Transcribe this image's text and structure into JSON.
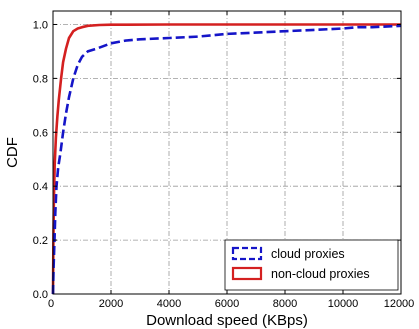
{
  "chart_data": {
    "type": "line",
    "title": "",
    "xlabel": "Download speed (KBps)",
    "ylabel": "CDF",
    "xlim": [
      0,
      12000
    ],
    "ylim": [
      0,
      1.05
    ],
    "xticks": [
      0,
      2000,
      4000,
      6000,
      8000,
      10000,
      12000
    ],
    "yticks": [
      0.0,
      0.2,
      0.4,
      0.6,
      0.8,
      1.0
    ],
    "xtick_labels": [
      "0",
      "2000",
      "4000",
      "6000",
      "8000",
      "10000",
      "12000"
    ],
    "ytick_labels": [
      "0.0",
      "0.2",
      "0.4",
      "0.6",
      "0.8",
      "1.0"
    ],
    "grid": true,
    "legend_position": "lower-right",
    "series": [
      {
        "name": "cloud proxies",
        "color": "#1515c8",
        "style": "dashed",
        "x": [
          0,
          20,
          50,
          80,
          120,
          180,
          250,
          350,
          450,
          550,
          700,
          850,
          1000,
          1200,
          1500,
          2000,
          2500,
          3000,
          4000,
          5000,
          6000,
          7000,
          8000,
          9000,
          10000,
          10500,
          11000,
          12000
        ],
        "y": [
          0.0,
          0.1,
          0.2,
          0.3,
          0.4,
          0.47,
          0.52,
          0.6,
          0.67,
          0.73,
          0.8,
          0.85,
          0.88,
          0.9,
          0.91,
          0.93,
          0.94,
          0.945,
          0.95,
          0.955,
          0.965,
          0.97,
          0.975,
          0.98,
          0.985,
          0.99,
          0.99,
          0.995
        ]
      },
      {
        "name": "non-cloud proxies",
        "color": "#d42020",
        "style": "solid",
        "x": [
          0,
          15,
          30,
          60,
          100,
          150,
          200,
          280,
          350,
          450,
          550,
          700,
          850,
          1000,
          1200,
          1600,
          2000,
          4000,
          12000
        ],
        "y": [
          0.0,
          0.2,
          0.35,
          0.48,
          0.58,
          0.66,
          0.72,
          0.8,
          0.86,
          0.91,
          0.95,
          0.975,
          0.985,
          0.99,
          0.995,
          0.998,
          0.999,
          1.0,
          1.0
        ]
      }
    ]
  }
}
